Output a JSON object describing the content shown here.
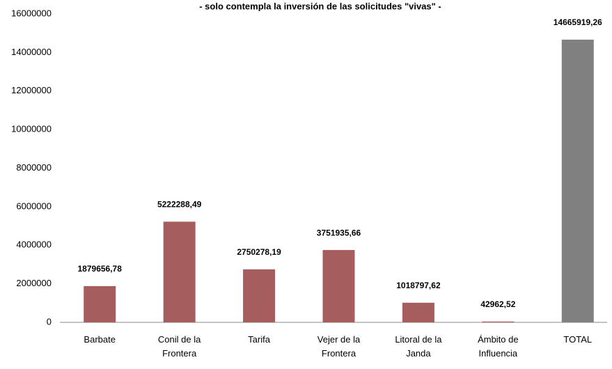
{
  "chart_data": {
    "type": "bar",
    "subtitle": "- solo contempla la inversión de las solicitudes \"vivas\" -",
    "categories": [
      "Barbate",
      "Conil de la Frontera",
      "Tarifa",
      "Vejer de la Frontera",
      "Litoral de la Janda",
      "Ámbito de Influencia",
      "TOTAL"
    ],
    "values": [
      1879656.78,
      5222288.49,
      2750278.19,
      3751935.66,
      1018797.62,
      42962.52,
      14665919.26
    ],
    "value_labels": [
      "1879656,78",
      "5222288,49",
      "2750278,19",
      "3751935,66",
      "1018797,62",
      "42962,52",
      "14665919,26"
    ],
    "colors": [
      "#a65d5d",
      "#a65d5d",
      "#a65d5d",
      "#a65d5d",
      "#a65d5d",
      "#a65d5d",
      "#808080"
    ],
    "ylim": [
      0,
      16000000
    ],
    "yticks": [
      0,
      2000000,
      4000000,
      6000000,
      8000000,
      10000000,
      12000000,
      14000000,
      16000000
    ],
    "grid": false
  }
}
